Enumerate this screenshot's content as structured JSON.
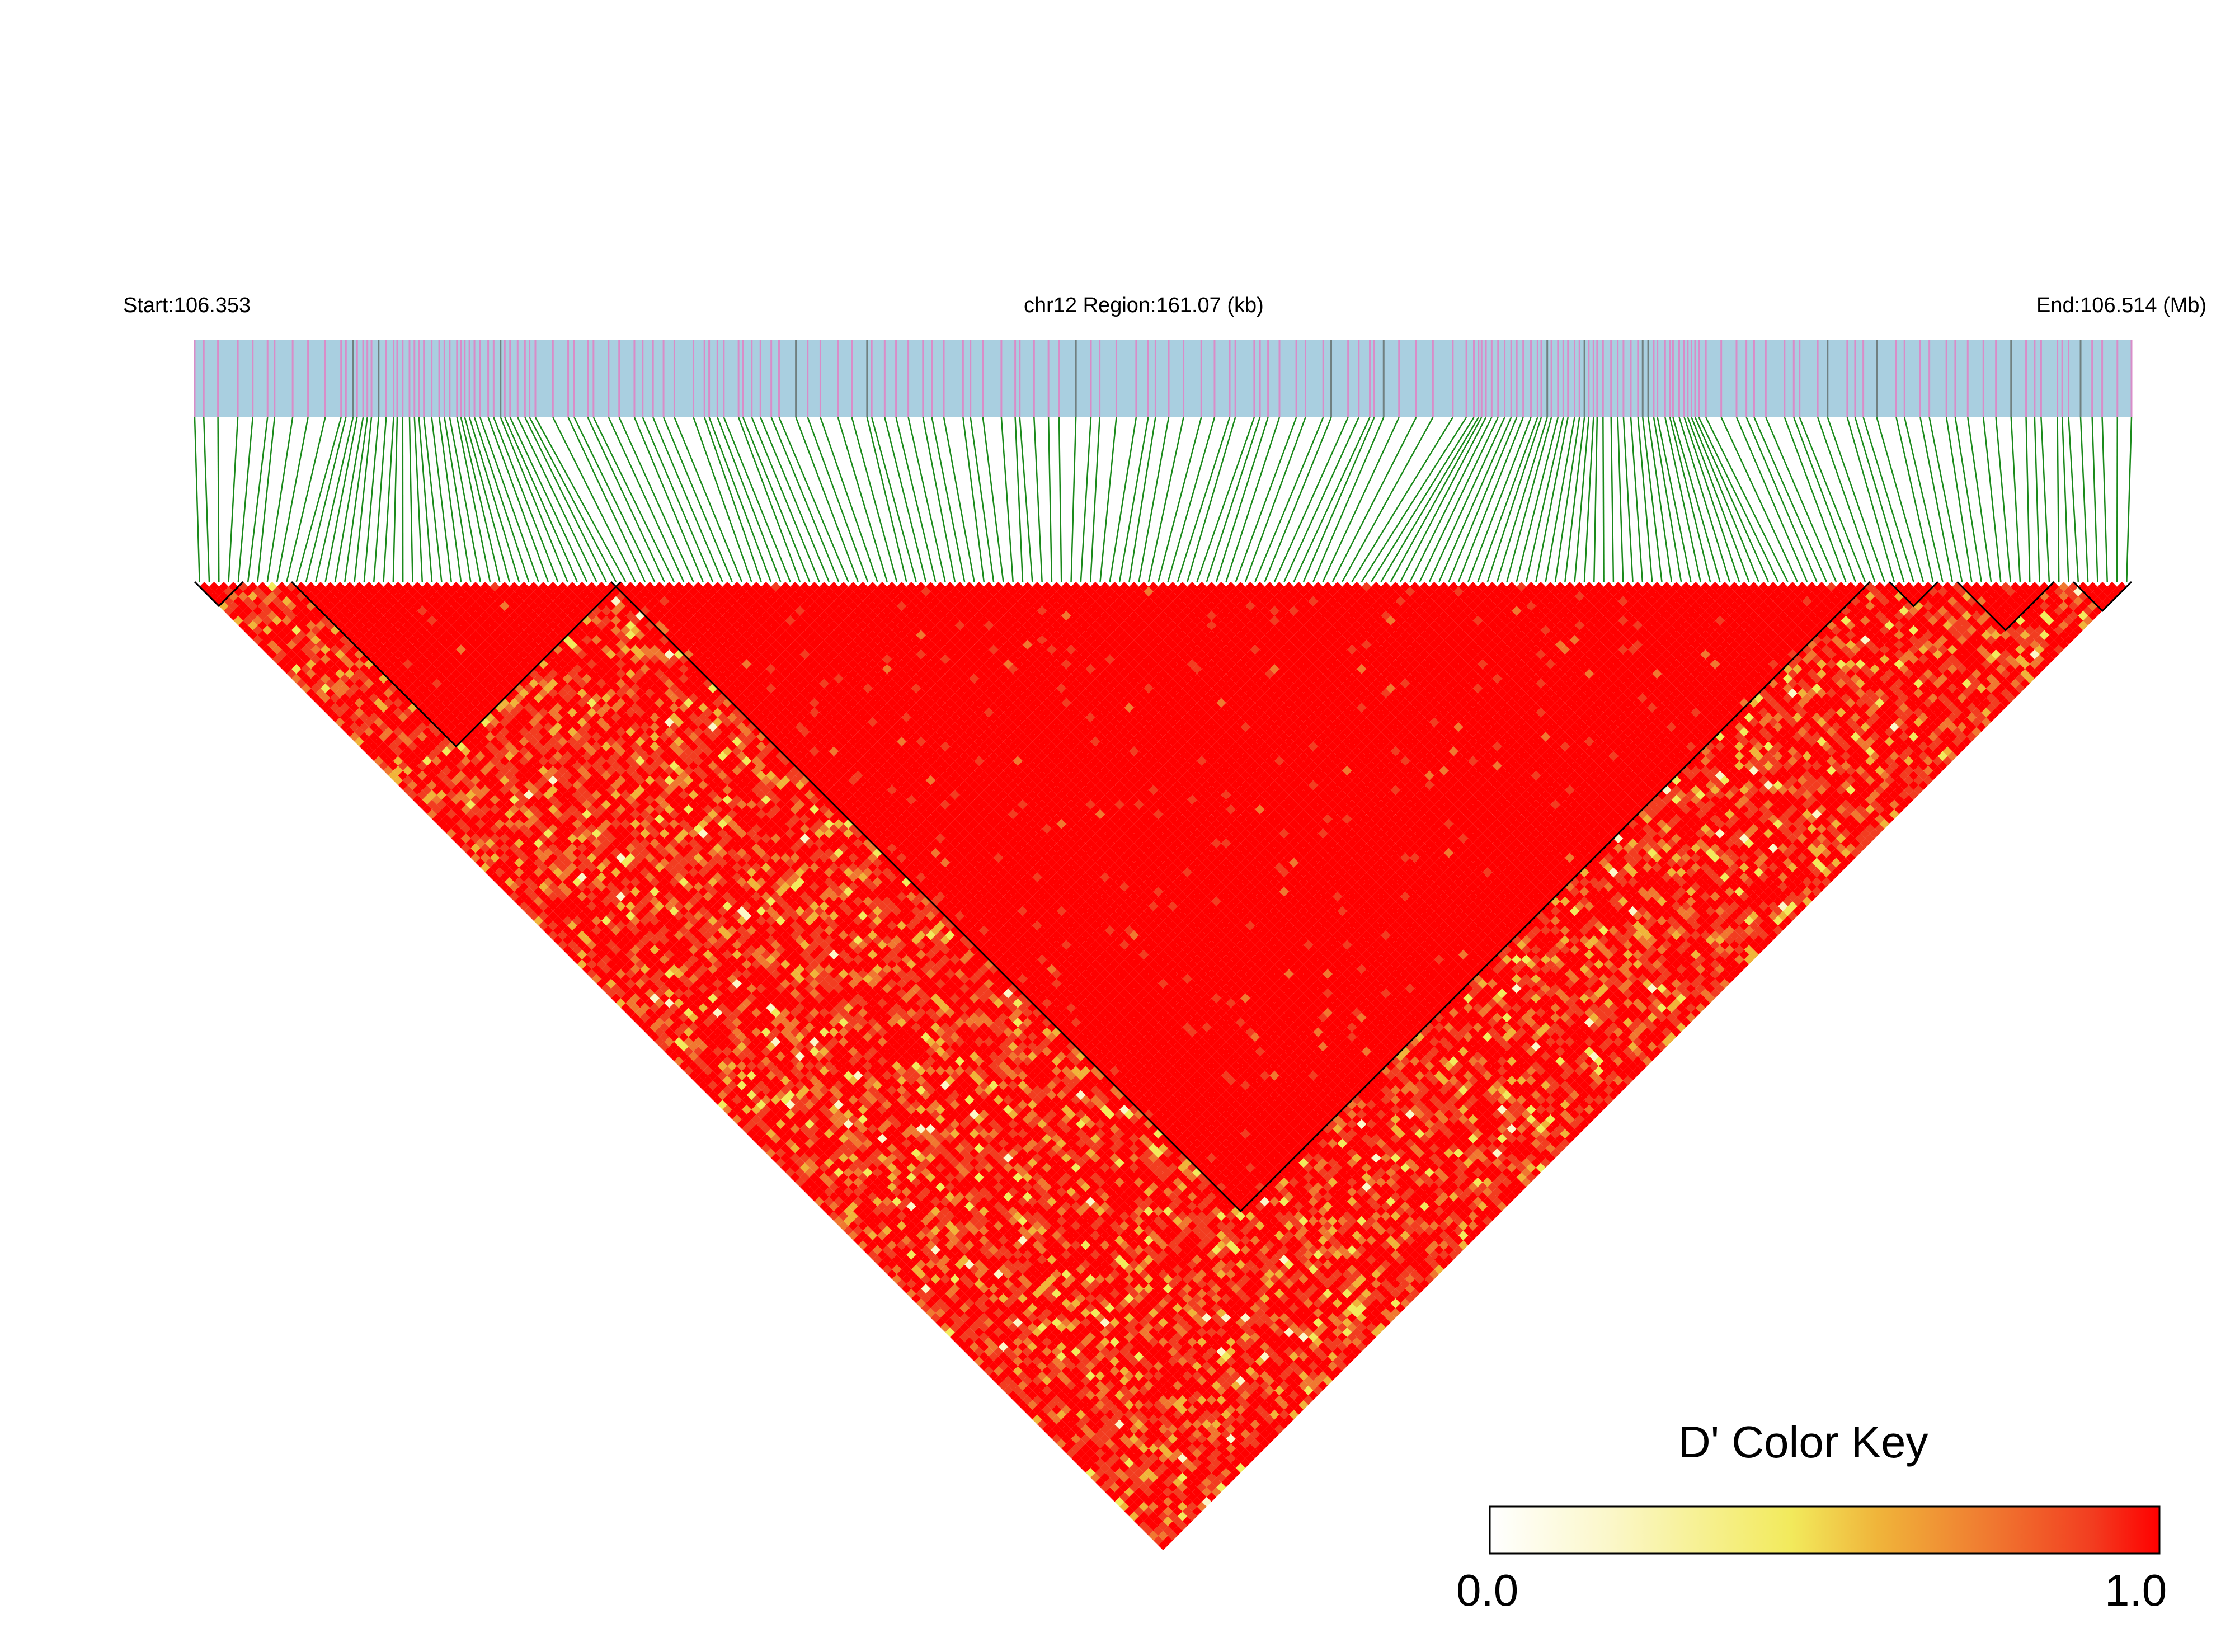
{
  "header": {
    "start_label": "Start:106.353",
    "region_label": "chr12 Region:161.07 (kb)",
    "end_label": "End:106.514 (Mb)"
  },
  "color_key": {
    "title": "D' Color Key",
    "min_label": "0.0",
    "max_label": "1.0",
    "stops": [
      "#ffffff",
      "#fbf7c9",
      "#f2ea5c",
      "#f0b43a",
      "#f07830",
      "#f23d20",
      "#ff0000"
    ]
  },
  "colors": {
    "snp_band": "#a9cfe0",
    "snp_tick_pink": "#d98cc8",
    "snp_tick_dark": "#708080",
    "connector": "#1a8a1a",
    "high_ld": "#ff0000",
    "block_outline": "#000000"
  },
  "chart_data": {
    "type": "heatmap",
    "title": "",
    "chromosome": "chr12",
    "region_start_mb": 106.353,
    "region_end_mb": 106.514,
    "region_length_kb": 161.07,
    "n_snps": 200,
    "value": "D'",
    "value_range": [
      0.0,
      1.0
    ],
    "blocks": [
      {
        "first_snp": 0,
        "last_snp": 4
      },
      {
        "first_snp": 10,
        "last_snp": 43
      },
      {
        "first_snp": 43,
        "last_snp": 172
      },
      {
        "first_snp": 175,
        "last_snp": 179
      },
      {
        "first_snp": 182,
        "last_snp": 191
      },
      {
        "first_snp": 194,
        "last_snp": 199
      }
    ],
    "pattern_notes": "LD block structure; most pairs D' near 1.0 (red), scattered lower values (orange/yellow/white) outside blocks"
  }
}
